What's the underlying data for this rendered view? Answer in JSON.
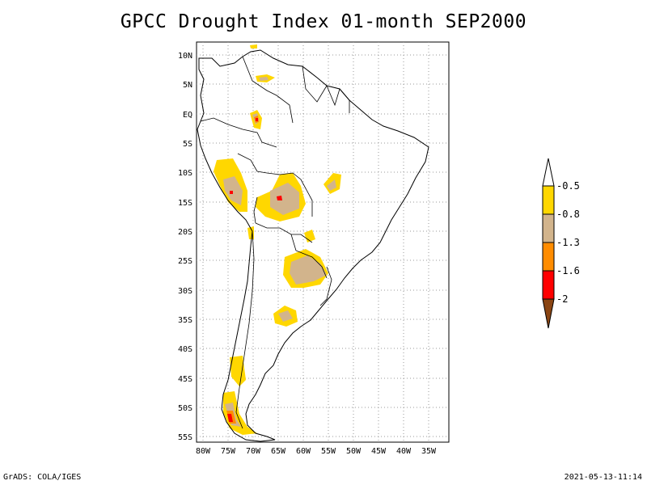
{
  "title": "GPCC Drought Index 01-month SEP2000",
  "footer": {
    "left": "GrADS: COLA/IGES",
    "right": "2021-05-13-11:14"
  },
  "map": {
    "lat_labels": [
      "10N",
      "5N",
      "EQ",
      "5S",
      "10S",
      "15S",
      "20S",
      "25S",
      "30S",
      "35S",
      "40S",
      "45S",
      "50S",
      "55S"
    ],
    "lon_labels": [
      "80W",
      "75W",
      "70W",
      "65W",
      "60W",
      "55W",
      "50W",
      "45W",
      "40W",
      "35W"
    ],
    "grid": "dotted"
  },
  "legend": {
    "labels": [
      "-0.5",
      "-0.8",
      "-1.3",
      "-1.6",
      "-2"
    ],
    "colors": {
      "white": "#ffffff",
      "yellow": "#ffd700",
      "tan": "#d2b48c",
      "orange": "#ff8c00",
      "red": "#ff0000",
      "brown": "#8b4513"
    }
  }
}
